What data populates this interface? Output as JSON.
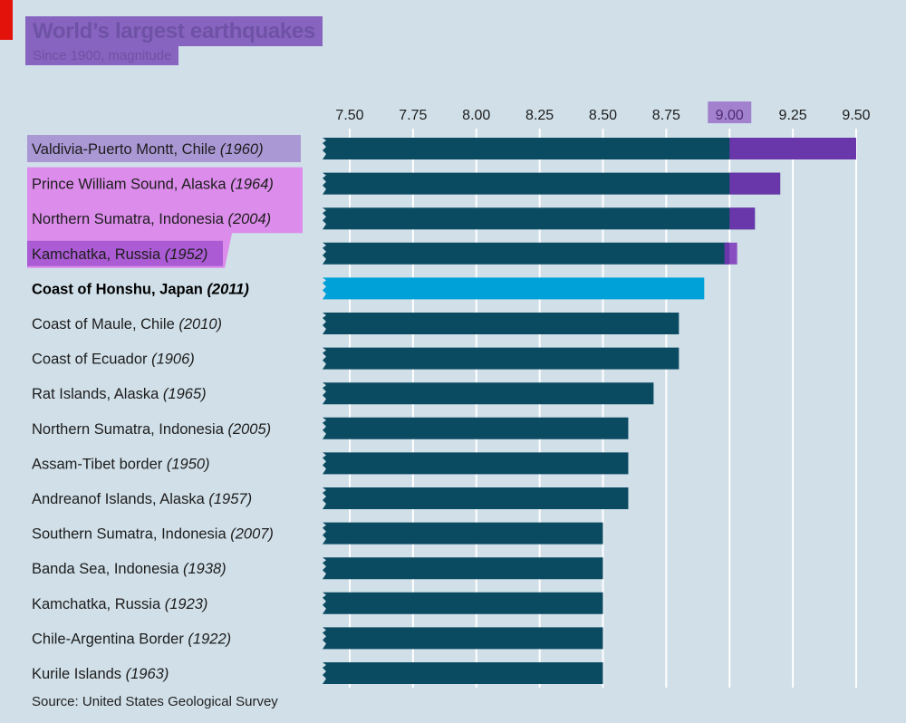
{
  "header": {
    "title": "World’s largest earthquakes",
    "subtitle": "Since 1900, magnitude"
  },
  "source": "Source: United States Geological Survey",
  "colors": {
    "background": "#d0dfe8",
    "bar": "#0b4b62",
    "highlight_bar": "#00a0d8",
    "overlay": "#7b34b8",
    "grid": "#ffffff",
    "accent": "#e3120b"
  },
  "chart_data": {
    "type": "bar",
    "orientation": "horizontal",
    "title": "World’s largest earthquakes",
    "subtitle": "Since 1900, magnitude",
    "xlim": [
      7.5,
      9.5
    ],
    "xticks": [
      "7.50",
      "7.75",
      "8.00",
      "8.25",
      "8.50",
      "8.75",
      "9.00",
      "9.25",
      "9.50"
    ],
    "grid": true,
    "axis_position": "top",
    "categories": [
      {
        "place": "Valdivia-Puerto Montt, Chile",
        "year": "(1960)"
      },
      {
        "place": "Prince William Sound, Alaska",
        "year": "(1964)"
      },
      {
        "place": "Northern Sumatra, Indonesia",
        "year": "(2004)"
      },
      {
        "place": "Kamchatka, Russia",
        "year": "(1952)"
      },
      {
        "place": "Coast of Honshu, Japan",
        "year": "(2011)"
      },
      {
        "place": "Coast of Maule, Chile",
        "year": "(2010)"
      },
      {
        "place": "Coast of Ecuador",
        "year": "(1906)"
      },
      {
        "place": "Rat Islands, Alaska",
        "year": "(1965)"
      },
      {
        "place": "Northern Sumatra, Indonesia",
        "year": "(2005)"
      },
      {
        "place": "Assam-Tibet border",
        "year": "(1950)"
      },
      {
        "place": "Andreanof Islands, Alaska",
        "year": "(1957)"
      },
      {
        "place": "Southern Sumatra, Indonesia",
        "year": "(2007)"
      },
      {
        "place": "Banda Sea, Indonesia",
        "year": "(1938)"
      },
      {
        "place": "Kamchatka, Russia",
        "year": "(1923)"
      },
      {
        "place": "Chile-Argentina Border",
        "year": "(1922)"
      },
      {
        "place": "Kurile Islands",
        "year": "(1963)"
      }
    ],
    "values": [
      9.5,
      9.2,
      9.1,
      9.0,
      8.9,
      8.8,
      8.8,
      8.7,
      8.6,
      8.6,
      8.6,
      8.5,
      8.5,
      8.5,
      8.5,
      8.5
    ],
    "highlight_index": 4
  }
}
